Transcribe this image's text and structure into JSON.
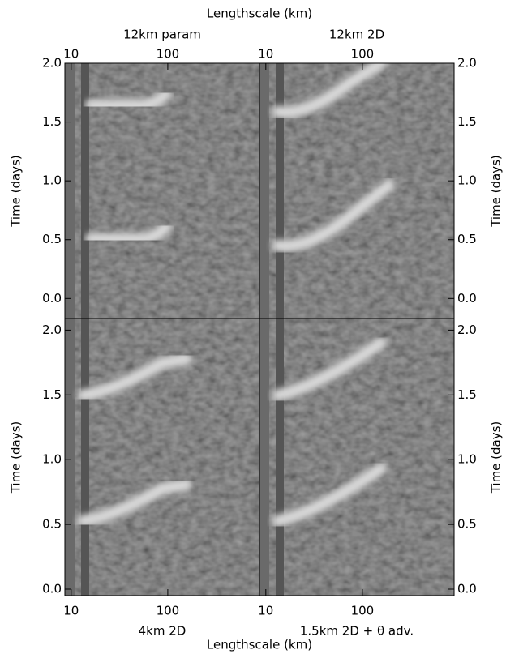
{
  "chart_data": [
    {
      "type": "heatmap",
      "title": "12km param",
      "xlabel": "Lengthscale (km)",
      "ylabel": "Time (days)",
      "xscale": "log",
      "xlim": [
        8.6,
        890
      ],
      "xticks": [
        10,
        100
      ],
      "ylim": [
        -0.17,
        2.0
      ],
      "yticks": [
        {
          "value": 0,
          "label": "0.0"
        },
        {
          "value": 0.5,
          "label": "0.5"
        },
        {
          "value": 1,
          "label": "1.0"
        },
        {
          "value": 1.5,
          "label": "1.5"
        },
        {
          "value": 2,
          "label": "2.0"
        }
      ]
    },
    {
      "type": "heatmap",
      "title": "12km 2D",
      "ylabel": "Time (days)",
      "xscale": "log",
      "xlim": [
        8.6,
        890
      ],
      "xticks": [
        10,
        100
      ],
      "ylim": [
        -0.17,
        2.0
      ],
      "yticks": [
        {
          "value": 0,
          "label": "0.0"
        },
        {
          "value": 0.5,
          "label": "0.5"
        },
        {
          "value": 1,
          "label": "1.0"
        },
        {
          "value": 1.5,
          "label": "1.5"
        },
        {
          "value": 2,
          "label": "2.0"
        }
      ]
    },
    {
      "type": "heatmap",
      "title": "4km 2D",
      "xlabel": "Lengthscale (km)",
      "ylabel": "Time (days)",
      "xscale": "log",
      "xlim": [
        8.6,
        890
      ],
      "xticks": [
        10,
        100
      ],
      "ylim": [
        -0.05,
        2.09
      ],
      "yticks": [
        {
          "value": 0,
          "label": "0.0"
        },
        {
          "value": 0.5,
          "label": "0.5"
        },
        {
          "value": 1,
          "label": "1.0"
        },
        {
          "value": 1.5,
          "label": "1.5"
        },
        {
          "value": 2,
          "label": "2.0"
        }
      ]
    },
    {
      "type": "heatmap",
      "title": "1.5km 2D + θ adv.",
      "ylabel": "Time (days)",
      "xscale": "log",
      "xlim": [
        8.6,
        890
      ],
      "xticks": [
        10,
        100
      ],
      "ylim": [
        -0.05,
        2.09
      ],
      "yticks": [
        {
          "value": 0,
          "label": "0.0"
        },
        {
          "value": 0.5,
          "label": "0.5"
        },
        {
          "value": 1,
          "label": "1.0"
        },
        {
          "value": 1.5,
          "label": "1.5"
        },
        {
          "value": 2,
          "label": "2.0"
        }
      ]
    }
  ]
}
